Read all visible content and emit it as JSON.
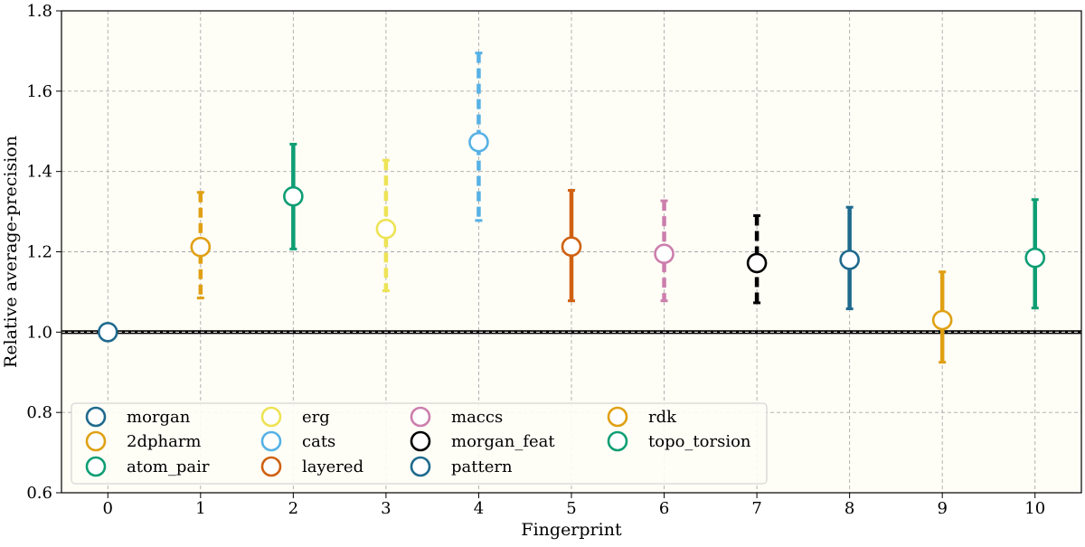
{
  "chart_data": {
    "type": "scatter",
    "xlabel": "Fingerprint",
    "ylabel": "Relative average-precision",
    "xlim": [
      -0.5,
      10.5
    ],
    "ylim": [
      0.6,
      1.8
    ],
    "xticks": [
      "0",
      "1",
      "2",
      "3",
      "4",
      "5",
      "6",
      "7",
      "8",
      "9",
      "10"
    ],
    "yticks": [
      "0.6",
      "0.8",
      "1.0",
      "1.2",
      "1.4",
      "1.6",
      "1.8"
    ],
    "grid": true,
    "legend_position": "lower-left",
    "reference_line": 1.0,
    "series": [
      {
        "name": "morgan",
        "x": 0,
        "y": 1.0,
        "low": 1.0,
        "high": 1.0,
        "color": "#1f6a8e",
        "dash": "solid"
      },
      {
        "name": "2dpharm",
        "x": 1,
        "y": 1.212,
        "low": 1.085,
        "high": 1.348,
        "color": "#e0a014",
        "dash": "dashed"
      },
      {
        "name": "atom_pair",
        "x": 2,
        "y": 1.338,
        "low": 1.207,
        "high": 1.468,
        "color": "#0e9e74",
        "dash": "solid"
      },
      {
        "name": "erg",
        "x": 3,
        "y": 1.257,
        "low": 1.103,
        "high": 1.428,
        "color": "#ede354",
        "dash": "dashed"
      },
      {
        "name": "cats",
        "x": 4,
        "y": 1.473,
        "low": 1.278,
        "high": 1.695,
        "color": "#56b1e5",
        "dash": "dashed"
      },
      {
        "name": "layered",
        "x": 5,
        "y": 1.213,
        "low": 1.078,
        "high": 1.353,
        "color": "#cf6111",
        "dash": "solid"
      },
      {
        "name": "maccs",
        "x": 6,
        "y": 1.195,
        "low": 1.078,
        "high": 1.327,
        "color": "#cc7ead",
        "dash": "dashed"
      },
      {
        "name": "morgan_feat",
        "x": 7,
        "y": 1.172,
        "low": 1.073,
        "high": 1.29,
        "color": "#000000",
        "dash": "dashed"
      },
      {
        "name": "pattern",
        "x": 8,
        "y": 1.18,
        "low": 1.058,
        "high": 1.311,
        "color": "#1f6a8e",
        "dash": "solid"
      },
      {
        "name": "rdk",
        "x": 9,
        "y": 1.03,
        "low": 0.925,
        "high": 1.15,
        "color": "#e0a014",
        "dash": "solid"
      },
      {
        "name": "topo_torsion",
        "x": 10,
        "y": 1.185,
        "low": 1.06,
        "high": 1.33,
        "color": "#0e9e74",
        "dash": "solid"
      }
    ],
    "colors": {
      "plot_background": "#fefdf6",
      "grid": "#aaaaaa"
    }
  }
}
